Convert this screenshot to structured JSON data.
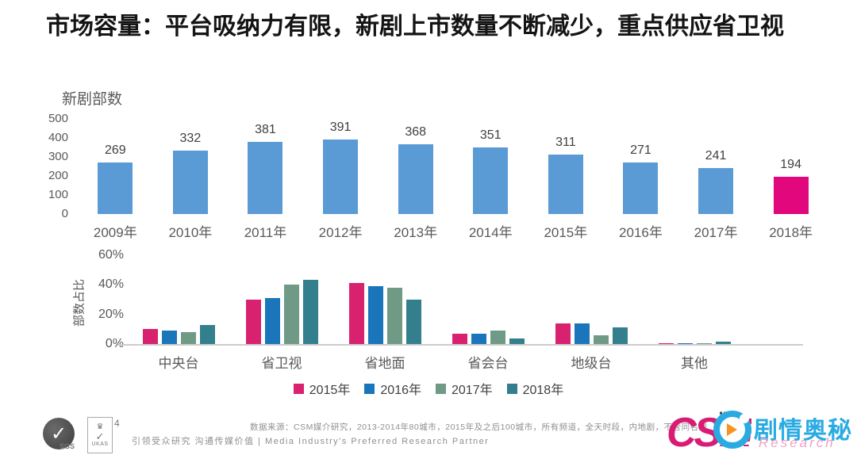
{
  "title": "市场容量：平台吸纳力有限，新剧上市数量不断减少，重点供应省卫视",
  "chart_data": [
    {
      "type": "bar",
      "title": "新剧部数",
      "categories": [
        "2009年",
        "2010年",
        "2011年",
        "2012年",
        "2013年",
        "2014年",
        "2015年",
        "2016年",
        "2017年",
        "2018年"
      ],
      "values": [
        269,
        332,
        381,
        391,
        368,
        351,
        311,
        271,
        241,
        194
      ],
      "yticks": [
        0,
        100,
        200,
        300,
        400,
        500
      ],
      "ylim": [
        0,
        500
      ],
      "xlabel": "",
      "ylabel": "新剧部数",
      "grid": false,
      "value_labels": true,
      "bar_color": "#5B9BD5",
      "highlight_index": 9,
      "highlight_color": "#E2077C"
    },
    {
      "type": "bar",
      "subtype": "grouped",
      "categories": [
        "中央台",
        "省卫视",
        "省地面",
        "省会台",
        "地级台",
        "其他"
      ],
      "series": [
        {
          "name": "2015年",
          "color": "#D8226F",
          "values": [
            10,
            30,
            41,
            7,
            14,
            0.5
          ]
        },
        {
          "name": "2016年",
          "color": "#1B75BB",
          "values": [
            9,
            31,
            39,
            7,
            14,
            0.5
          ]
        },
        {
          "name": "2017年",
          "color": "#6E9A86",
          "values": [
            8,
            40,
            38,
            9,
            6,
            0.5
          ]
        },
        {
          "name": "2018年",
          "color": "#337F8D",
          "values": [
            13,
            43,
            30,
            4,
            11,
            1.5
          ]
        }
      ],
      "ytick_values": [
        0,
        20,
        40,
        60
      ],
      "ytick_labels": [
        "0%",
        "20%",
        "40%",
        "60%"
      ],
      "ylim": [
        0,
        60
      ],
      "xlabel": "",
      "ylabel": "部数占比",
      "grid": false,
      "legend_position": "bottom"
    }
  ],
  "footer": {
    "page_number": "4",
    "tagline": "引领受众研究  沟通传媒价值 | Media Industry's Preferred Research Partner",
    "source": "数据来源：CSM媒介研究，2013-2014年80城市，2015年及之后100城市，所有频道，全天时段，内地剧，不含同名剧",
    "sgs_label": "SGS",
    "sgs_check": "✓",
    "ukas_crown": "♛",
    "ukas_check": "✓",
    "ukas_label": "UKAS",
    "csm_cs": "CS",
    "csm_m": "M",
    "quote_mark": "”",
    "watermark_title": "剧情奥秘",
    "watermark_sub": "Research"
  }
}
